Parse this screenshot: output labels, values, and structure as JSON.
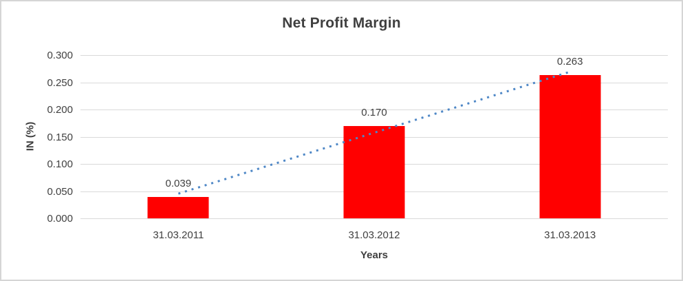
{
  "chart": {
    "title": "Net Profit Margin",
    "x_title": "Years",
    "y_title": "IN (%)"
  },
  "chart_data": {
    "type": "bar",
    "title": "Net Profit Margin",
    "xlabel": "Years",
    "ylabel": "IN (%)",
    "categories": [
      "31.03.2011",
      "31.03.2012",
      "31.03.2013"
    ],
    "values": [
      0.039,
      0.17,
      0.263
    ],
    "data_labels": [
      "0.039",
      "0.170",
      "0.263"
    ],
    "ylim": [
      0,
      0.3
    ],
    "ytick_labels": [
      "0.300",
      "0.250",
      "0.200",
      "0.150",
      "0.100",
      "0.050",
      "0.000"
    ],
    "grid": true,
    "legend": "none",
    "bar_color": "#ff0000",
    "gridline_color": "#d9d9d9",
    "trendline": {
      "type": "linear",
      "style": "dotted",
      "color": "#4e87c6"
    }
  }
}
